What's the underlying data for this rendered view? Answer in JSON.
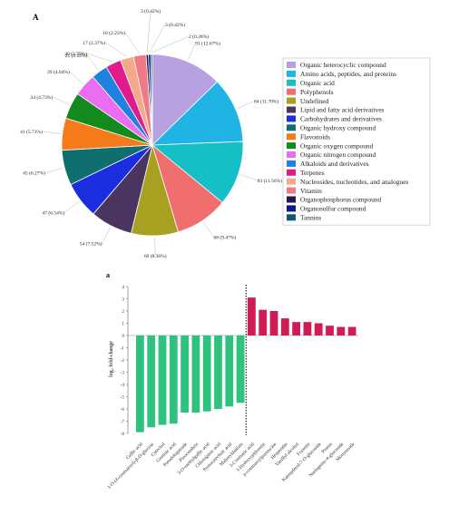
{
  "chart_data": [
    {
      "type": "pie",
      "panel_label": "A",
      "slices": [
        {
          "name": "Organic heterocyclic compound",
          "value": 91,
          "label": "91 (12.67%)",
          "color": "#b7a1e0"
        },
        {
          "name": "Amino acids, peptides, and proteins",
          "value": 84,
          "label": "84 (11.70%)",
          "color": "#1fb4e4"
        },
        {
          "name": "Organic acid",
          "value": 83,
          "label": "83 (11.56%)",
          "color": "#15bfc6"
        },
        {
          "name": "Polyphenols",
          "value": 68,
          "label": "68 (9.47%)",
          "color": "#f06e6e"
        },
        {
          "name": "Undefined",
          "value": 60,
          "label": "60 (8.36%)",
          "color": "#a8a020"
        },
        {
          "name": "Lipid and fatty acid derivatives",
          "value": 54,
          "label": "54 (7.52%)",
          "color": "#4a3560"
        },
        {
          "name": "Carbohydrates and derivatives",
          "value": 47,
          "label": "47 (6.54%)",
          "color": "#1a2ee0"
        },
        {
          "name": "Organic hydroxy compound",
          "value": 45,
          "label": "45 (6.27%)",
          "color": "#0f6f6f"
        },
        {
          "name": "Flavonoids",
          "value": 41,
          "label": "41 (5.71%)",
          "color": "#f47a1a"
        },
        {
          "name": "Organic oxygen compound",
          "value": 34,
          "label": "34 (4.73%)",
          "color": "#138a1e"
        },
        {
          "name": "Organic nitrogen compound",
          "value": 29,
          "label": "29 (4.04%)",
          "color": "#ea6cf0"
        },
        {
          "name": "Alkaloids and derivatives",
          "value": 21,
          "label": "21 (2.92%)",
          "color": "#1d82e0"
        },
        {
          "name": "Terpenes",
          "value": 20,
          "label": "20 (2.79%)",
          "color": "#e21a8c"
        },
        {
          "name": "Nucleosides, nucleotides, and analogues",
          "value": 17,
          "label": "17 (2.37%)",
          "color": "#f4a98a"
        },
        {
          "name": "Vitamin",
          "value": 16,
          "label": "16 (2.23%)",
          "color": "#ef7a84"
        },
        {
          "name": "Organophosphorus compound",
          "value": 3,
          "label": "3 (0.42%)",
          "color": "#221a4a"
        },
        {
          "name": "Organosulfur compound",
          "value": 3,
          "label": "3 (0.42%)",
          "color": "#0a1a8a"
        },
        {
          "name": "Tannins",
          "value": 2,
          "label": "2 (0.28%)",
          "color": "#0e5a66"
        }
      ],
      "legend_position": "right"
    },
    {
      "type": "bar",
      "panel_label": "a",
      "ylabel": "log₂ fold-change",
      "ylim": [
        -8,
        4
      ],
      "yticks": [
        4,
        3,
        2,
        1,
        0,
        -1,
        -2,
        -3,
        -4,
        -5,
        -6,
        -7,
        -8
      ],
      "categories": [
        "Gallic acid",
        "1-O-(4-coumaroyl)-β-D-glucose",
        "Catechol",
        "Gentisic acid",
        "Pseudobaptiside",
        "Pinocembrin",
        "3-O-methylgallic acid",
        "Chlorogenic acid",
        "Protocatechuic acid",
        "Malonyldaidzin",
        "3-Coumaric acid",
        "3-Hydroxyphloretin",
        "p-coumaroylputrescine",
        "Hesperidin",
        "Vanillyl alcohol",
        "Fraxetin",
        "Kaempferol-7-O-glucoside",
        "Prunin",
        "Naringenin-4-glucoside",
        "Morroniside"
      ],
      "values": [
        -7.9,
        -7.5,
        -7.3,
        -7.2,
        -6.3,
        -6.3,
        -6.2,
        -6.0,
        -5.8,
        -5.5,
        3.1,
        2.1,
        2.0,
        1.4,
        1.1,
        1.1,
        1.0,
        0.8,
        0.7,
        0.7
      ],
      "colors": {
        "down": "#2ec27e",
        "up": "#d01c55"
      },
      "divider_after_index": 9,
      "grid": false
    }
  ]
}
